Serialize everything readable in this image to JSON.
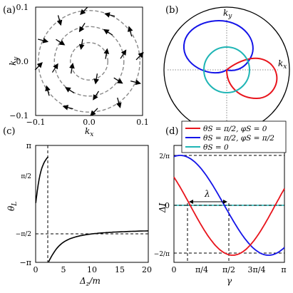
{
  "panels": {
    "a": {
      "label": "(a)",
      "xlabel": "k",
      "xlabel_sub": "x",
      "ylabel": "k",
      "ylabel_sub": "y",
      "xticks": [
        "−0.1",
        "0.0",
        "0.1"
      ],
      "yticks": [
        "0.1",
        "0.0",
        "−0.1"
      ]
    },
    "b": {
      "label": "(b)",
      "kx": "k",
      "kx_sub": "x",
      "ky": "k",
      "ky_sub": "y"
    },
    "c": {
      "label": "(c)",
      "xlabel": "Δ",
      "xlabel_sub": "z",
      "xlabel_tail": "/m",
      "ylabel": "θ",
      "ylabel_sub": "L",
      "xticks": [
        "0",
        "5",
        "10",
        "15",
        "20"
      ],
      "yticks": [
        "π",
        "π/2",
        "−π/2",
        "−π"
      ]
    },
    "d": {
      "label": "(d)",
      "xlabel": "γ",
      "ylabel": "ΔI",
      "xticks": [
        "0",
        "π/4",
        "π/2",
        "3π/4",
        "π"
      ],
      "yticks": [
        "2/π",
        "0",
        "−2/π"
      ],
      "annotation": "λ"
    }
  },
  "legend": [
    {
      "text": "θS = π/2, φS = 0",
      "color": "#e8141c"
    },
    {
      "text": "θS = π/2, φS = π/2",
      "color": "#1414e8"
    },
    {
      "text": "θS = 0",
      "color": "#1fb5b5"
    }
  ],
  "chart_data": [
    {
      "type": "scatter",
      "title": "",
      "xlabel": "kx",
      "ylabel": "ky",
      "xlim": [
        -0.1,
        0.1
      ],
      "ylim": [
        -0.1,
        0.1
      ],
      "circles_radius": [
        0.035,
        0.065,
        0.095
      ]
    },
    {
      "type": "line",
      "title": "",
      "xlabel": "Δz/m",
      "ylabel": "θL",
      "xlim": [
        0,
        20
      ],
      "ylim": [
        -3.1416,
        3.1416
      ],
      "vline": 2.25,
      "hline": -1.5708
    },
    {
      "type": "line",
      "title": "",
      "xlabel": "γ",
      "ylabel": "ΔI",
      "xlim": [
        0,
        3.1416
      ],
      "ylim": [
        -0.78,
        0.78
      ],
      "series": [
        {
          "name": "θS = π/2, φS = 0",
          "x": [
            0,
            0.39,
            0.79,
            1.18,
            1.57,
            1.96,
            2.36,
            2.75,
            3.14
          ],
          "y": [
            0.32,
            0.12,
            -0.12,
            -0.36,
            -0.56,
            -0.64,
            -0.58,
            -0.38,
            -0.12
          ]
        },
        {
          "name": "θS = π/2, φS = π/2",
          "x": [
            0,
            0.39,
            0.79,
            1.18,
            1.57,
            1.96,
            2.36,
            2.75,
            3.14
          ],
          "y": [
            0.6,
            0.64,
            0.6,
            0.45,
            0.26,
            0.02,
            -0.22,
            -0.42,
            -0.58
          ]
        },
        {
          "name": "θS = 0",
          "x": [
            0,
            3.14
          ],
          "y": [
            0,
            0
          ]
        }
      ],
      "hlines": [
        0.6366,
        -0.6366
      ],
      "vlines": [
        0.38,
        1.57
      ]
    }
  ]
}
